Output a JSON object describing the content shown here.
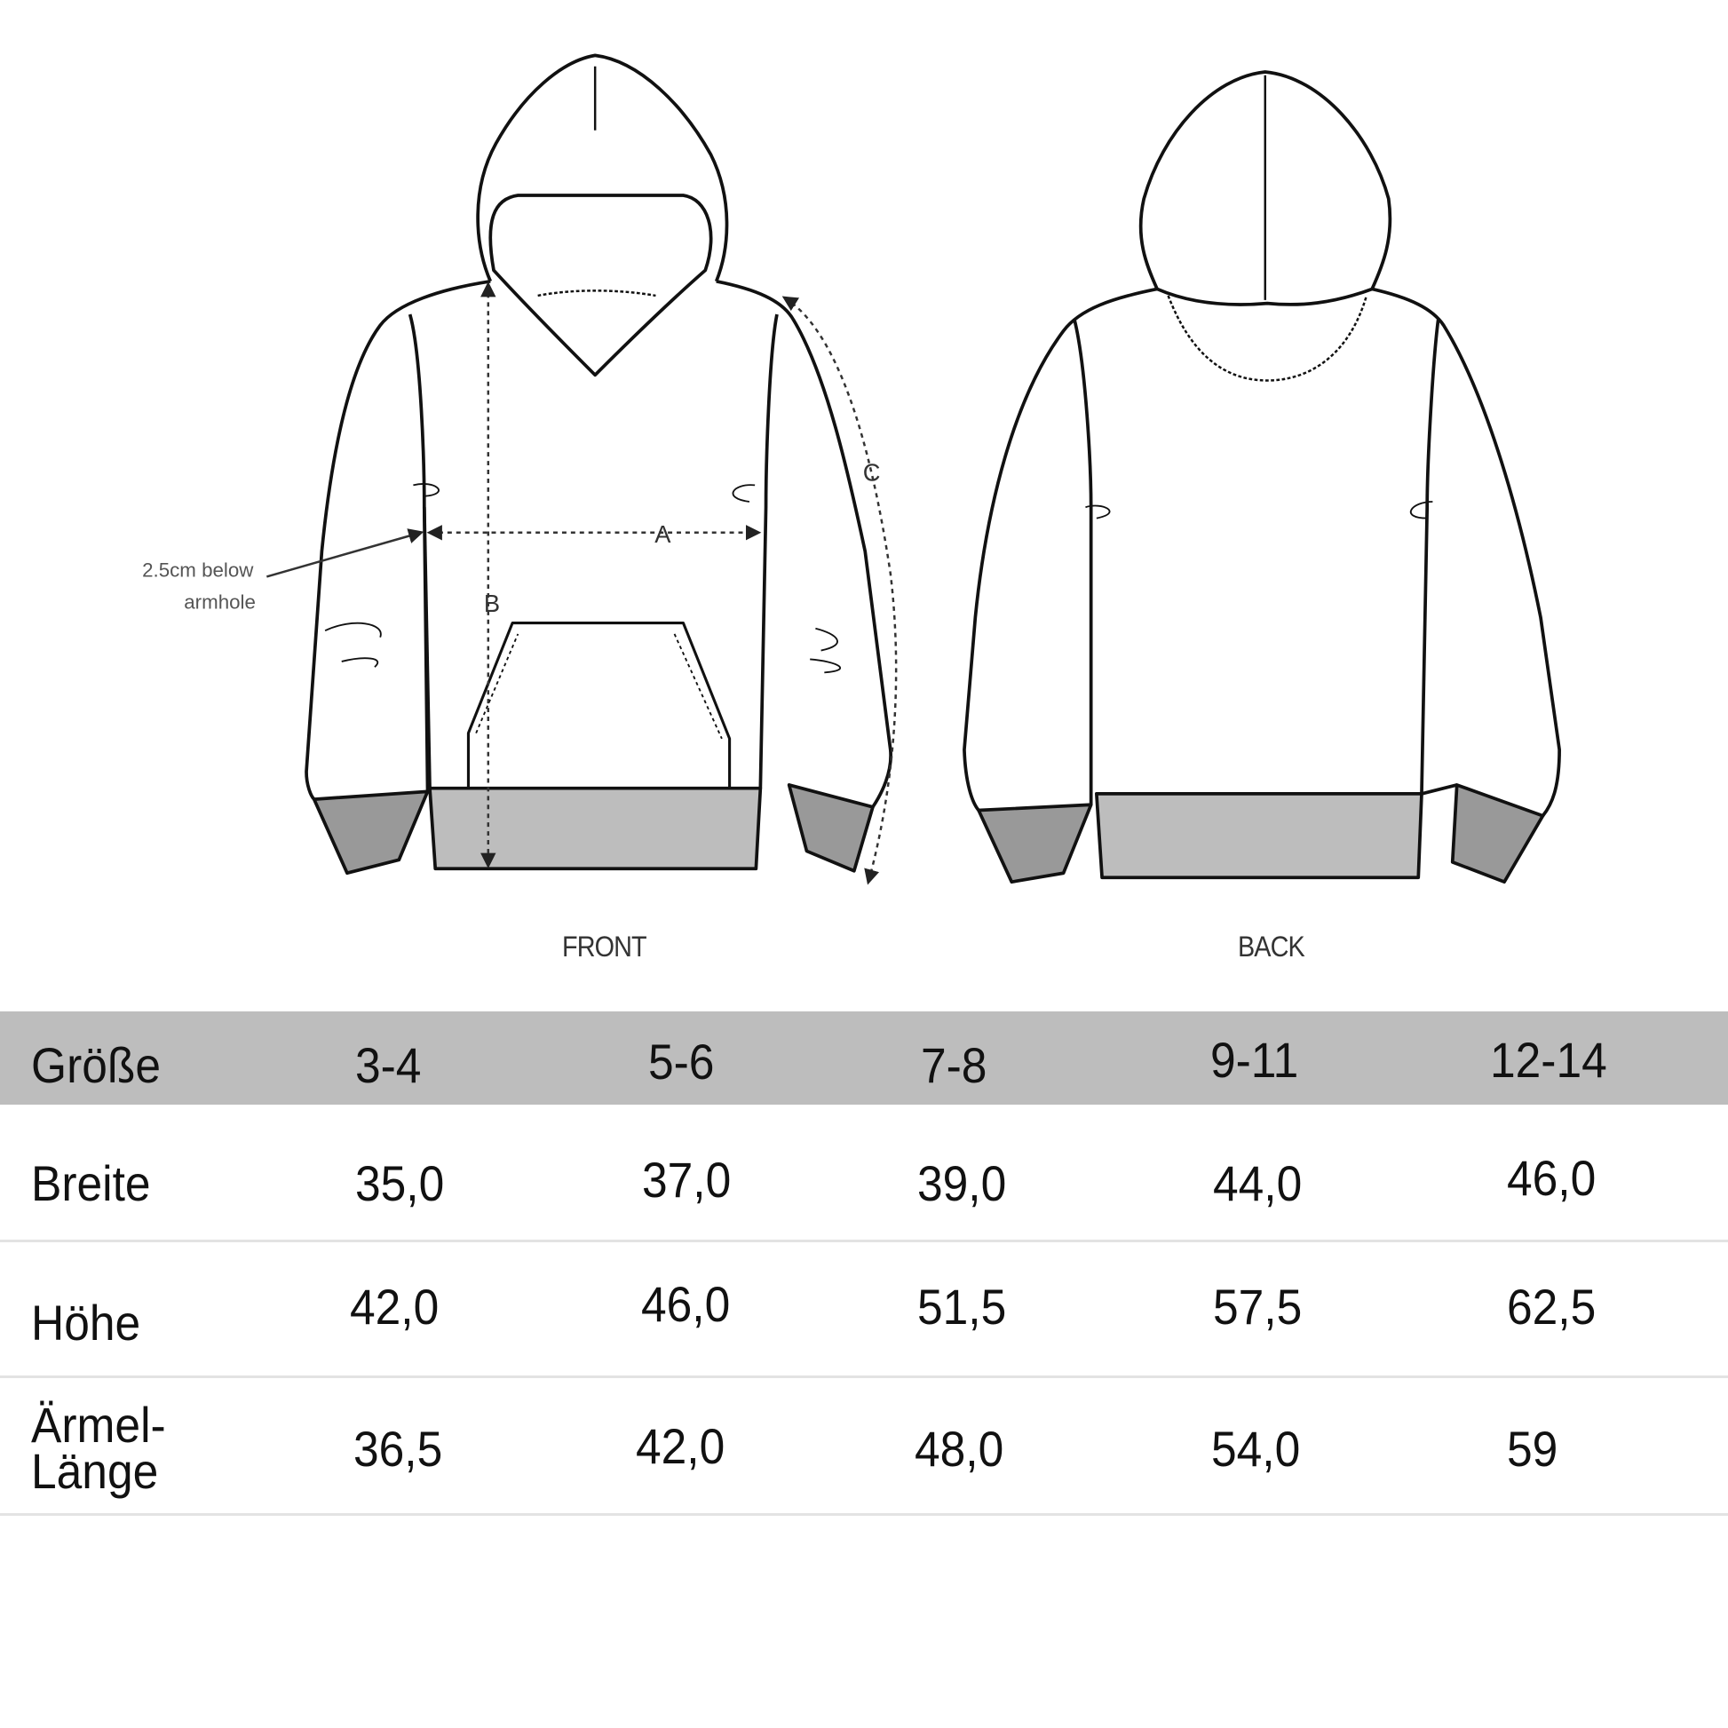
{
  "diagram": {
    "views": {
      "front": "FRONT",
      "back": "BACK"
    },
    "measure_labels": {
      "a": "A",
      "b": "B",
      "c": "C"
    },
    "note_line1": "2.5cm below",
    "note_line2": "armhole",
    "colors": {
      "outline": "#111111",
      "ribbing": "#999999",
      "waistband": "#bdbdbd",
      "header": "#bdbdbd"
    }
  },
  "table": {
    "header": {
      "label": "Größe",
      "sizes": [
        "3-4",
        "5-6",
        "7-8",
        "9-11",
        "12-14"
      ]
    },
    "rows": [
      {
        "label": "Breite",
        "values": [
          "35,0",
          "37,0",
          "39,0",
          "44,0",
          "46,0"
        ]
      },
      {
        "label": "Höhe",
        "values": [
          "42,0",
          "46,0",
          "51,5",
          "57,5",
          "62,5"
        ]
      },
      {
        "label_line1": "Ärmel-",
        "label_line2": "Länge",
        "values": [
          "36,5",
          "42,0",
          "48,0",
          "54,0",
          "59"
        ]
      }
    ]
  }
}
